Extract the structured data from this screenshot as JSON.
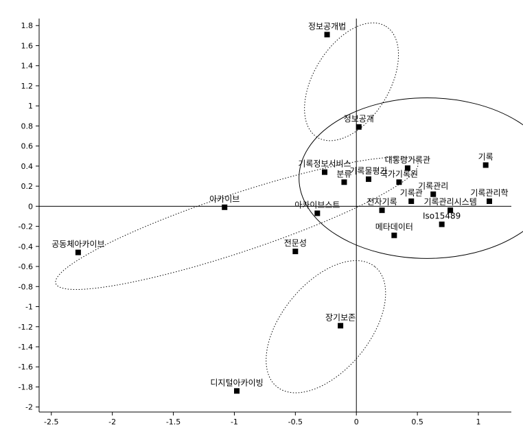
{
  "chart_data": {
    "type": "scatter",
    "title": "",
    "xlabel": "",
    "ylabel": "",
    "xlim": [
      -2.6,
      1.27
    ],
    "ylim": [
      -2.05,
      1.87
    ],
    "xticks": [
      -2.5,
      -2,
      -1.5,
      -1,
      -0.5,
      0,
      0.5,
      1
    ],
    "xtick_labels": [
      "-2.5",
      "-2",
      "-1.5",
      "-1",
      "-0.5",
      "0",
      "0.5",
      "1"
    ],
    "yticks": [
      1.8,
      1.6,
      1.4,
      1.2,
      1,
      0.8,
      0.6,
      0.4,
      0.2,
      0,
      -0.2,
      -0.4,
      -0.6,
      -0.8,
      -1,
      -1.2,
      -1.4,
      -1.6,
      -1.8,
      -2
    ],
    "ytick_labels": [
      "1.8",
      "1.6",
      "1.4",
      "1.2",
      "1",
      "0.8",
      "0.6",
      "0.4",
      "0.2",
      "0",
      "-0.2",
      "-0.4",
      "-0.6",
      "-0.8",
      "-1",
      "-1.2",
      "-1.4",
      "-1.6",
      "-1.8",
      "-2"
    ],
    "grid": false,
    "reference_lines": {
      "x": 0,
      "y": 0
    },
    "points": [
      {
        "label": "정보공개법",
        "x": -0.24,
        "y": 1.71
      },
      {
        "label": "정보공개",
        "x": 0.02,
        "y": 0.79
      },
      {
        "label": "기록",
        "x": 1.06,
        "y": 0.41
      },
      {
        "label": "대통령기록관",
        "x": 0.42,
        "y": 0.38
      },
      {
        "label": "기록정보서비스",
        "x": -0.26,
        "y": 0.34
      },
      {
        "label": "기록물평가",
        "x": 0.1,
        "y": 0.27
      },
      {
        "label": "국가기록원",
        "x": 0.35,
        "y": 0.24
      },
      {
        "label": "분류",
        "x": -0.1,
        "y": 0.24
      },
      {
        "label": "기록관리",
        "x": 0.63,
        "y": 0.12
      },
      {
        "label": "기록관리학",
        "x": 1.09,
        "y": 0.05
      },
      {
        "label": "기록관",
        "x": 0.45,
        "y": 0.05
      },
      {
        "label": "기록관리시스템",
        "x": 0.77,
        "y": -0.04
      },
      {
        "label": "전자기록",
        "x": 0.21,
        "y": -0.04
      },
      {
        "label": "아카이브",
        "x": -1.08,
        "y": -0.01
      },
      {
        "label": "아카이브스트",
        "x": -0.32,
        "y": -0.07
      },
      {
        "label": "Iso15489",
        "x": 0.7,
        "y": -0.18
      },
      {
        "label": "메타데이터",
        "x": 0.31,
        "y": -0.29
      },
      {
        "label": "전문성",
        "x": -0.5,
        "y": -0.45
      },
      {
        "label": "공동체아카이브",
        "x": -2.28,
        "y": -0.46
      },
      {
        "label": "장기보존",
        "x": -0.13,
        "y": -1.19
      },
      {
        "label": "디지털아카이빙",
        "x": -0.98,
        "y": -1.84
      }
    ],
    "clusters": [
      {
        "center": [
          0.58,
          0.28
        ],
        "rx": 1.05,
        "ry": 0.8,
        "angle_deg": 0,
        "style": "solid"
      },
      {
        "center": [
          -0.04,
          1.24
        ],
        "rx": 0.62,
        "ry": 0.32,
        "angle_deg": 63,
        "style": "dotted"
      },
      {
        "center": [
          -0.98,
          -0.17
        ],
        "rx": 1.6,
        "ry": 0.28,
        "angle_deg": 22,
        "style": "dotted"
      },
      {
        "center": [
          -0.25,
          -1.2
        ],
        "rx": 0.72,
        "ry": 0.38,
        "angle_deg": 56,
        "style": "dotted"
      }
    ]
  }
}
